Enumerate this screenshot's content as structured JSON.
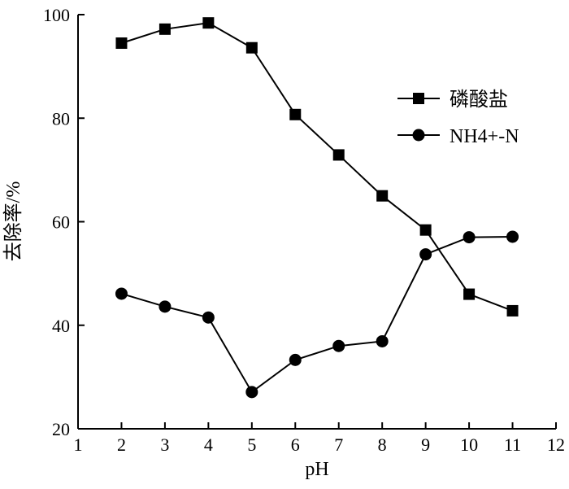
{
  "chart_data": {
    "type": "line",
    "xlabel": "pH",
    "ylabel": "去除率/%",
    "xlim": [
      1,
      12
    ],
    "ylim": [
      20,
      100
    ],
    "x_ticks": [
      "1",
      "2",
      "3",
      "4",
      "5",
      "6",
      "7",
      "8",
      "9",
      "10",
      "11",
      "12"
    ],
    "y_ticks": [
      "20",
      "40",
      "60",
      "80",
      "100"
    ],
    "legend_position": "top-right",
    "grid": false,
    "x": [
      2,
      3,
      4,
      5,
      6,
      7,
      8,
      9,
      10,
      11
    ],
    "series": [
      {
        "name": "磷酸盐",
        "marker": "square",
        "values": [
          94.5,
          97.2,
          98.4,
          93.6,
          80.7,
          72.9,
          65.0,
          58.4,
          46.0,
          42.8
        ]
      },
      {
        "name": "NH4+-N",
        "marker": "circle",
        "values": [
          46.1,
          43.6,
          41.5,
          27.1,
          33.3,
          36.0,
          36.9,
          53.7,
          57.0,
          57.1
        ]
      }
    ]
  }
}
